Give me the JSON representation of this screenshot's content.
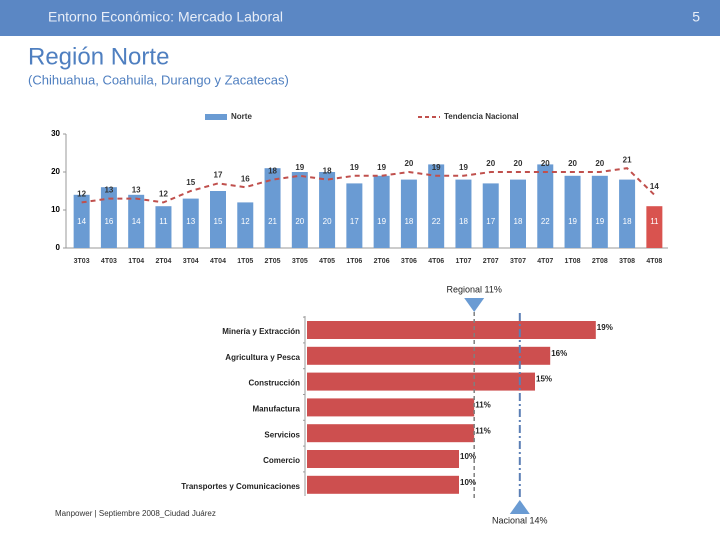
{
  "header": {
    "title": "Entorno Económico: Mercado Laboral",
    "page": "5"
  },
  "title": "Región Norte",
  "subtitle": "(Chihuahua, Coahuila, Durango y Zacatecas)",
  "footer": "Manpower | Septiembre 2008_Ciudad Juárez",
  "chart_data": [
    {
      "type": "bar-line",
      "categories": [
        "3T03",
        "4T03",
        "1T04",
        "2T04",
        "3T04",
        "4T04",
        "1T05",
        "2T05",
        "3T05",
        "4T05",
        "1T06",
        "2T06",
        "3T06",
        "4T06",
        "1T07",
        "2T07",
        "3T07",
        "4T07",
        "1T08",
        "2T08",
        "3T08",
        "4T08"
      ],
      "series": [
        {
          "name": "Norte",
          "kind": "bar",
          "color": "#6a9bd3",
          "colors": [
            "#6a9bd3",
            "#6a9bd3",
            "#6a9bd3",
            "#6a9bd3",
            "#6a9bd3",
            "#6a9bd3",
            "#6a9bd3",
            "#6a9bd3",
            "#6a9bd3",
            "#6a9bd3",
            "#6a9bd3",
            "#6a9bd3",
            "#6a9bd3",
            "#6a9bd3",
            "#6a9bd3",
            "#6a9bd3",
            "#6a9bd3",
            "#6a9bd3",
            "#6a9bd3",
            "#6a9bd3",
            "#6a9bd3",
            "#d9534f"
          ],
          "values": [
            14,
            16,
            14,
            11,
            13,
            15,
            12,
            21,
            20,
            20,
            17,
            19,
            18,
            22,
            18,
            17,
            18,
            22,
            19,
            19,
            18,
            11
          ]
        },
        {
          "name": "Tendencia Nacional",
          "kind": "line",
          "color": "#c0504d",
          "values": [
            12,
            13,
            13,
            12,
            15,
            17,
            16,
            18,
            19,
            18,
            19,
            19,
            20,
            19,
            19,
            20,
            20,
            20,
            20,
            20,
            21,
            14
          ]
        }
      ],
      "ylim": [
        0,
        30
      ],
      "yticks": [
        0,
        10,
        20,
        30
      ]
    },
    {
      "type": "hbar",
      "categories": [
        "Minería y Extracción",
        "Agricultura y Pesca",
        "Construcción",
        "Manufactura",
        "Servicios",
        "Comercio",
        "Transportes y Comunicaciones"
      ],
      "values": [
        19,
        16,
        15,
        11,
        11,
        10,
        10
      ],
      "value_labels": [
        "19%",
        "16%",
        "15%",
        "11%",
        "11%",
        "10%",
        "10%"
      ],
      "color": "#cd4f4f",
      "xlim": [
        0,
        20
      ],
      "references": [
        {
          "label": "Regional 11%",
          "value": 11,
          "color": "#7f7f7f"
        },
        {
          "label": "Nacional 14%",
          "value": 14,
          "color": "#5b7fb5"
        }
      ]
    }
  ]
}
